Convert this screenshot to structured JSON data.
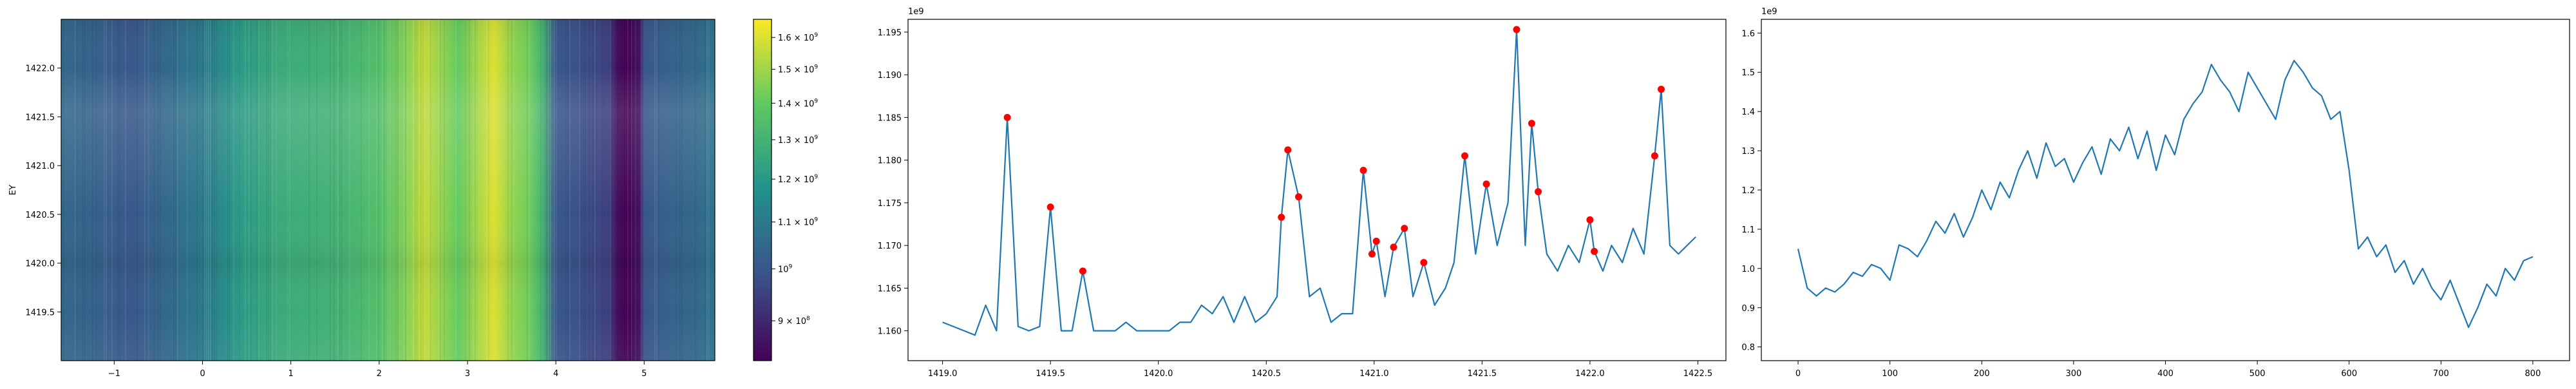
{
  "chart_data": [
    {
      "type": "heatmap",
      "ylabel": "EY",
      "x_ticks": [
        "−1",
        "0",
        "1",
        "2",
        "3",
        "4",
        "5"
      ],
      "x_tick_values": [
        -1,
        0,
        1,
        2,
        3,
        4,
        5
      ],
      "xlim": [
        -1.6,
        5.8
      ],
      "y_ticks": [
        "1419.5",
        "1420.0",
        "1420.5",
        "1421.0",
        "1421.5",
        "1422.0"
      ],
      "y_tick_values": [
        1419.5,
        1420.0,
        1420.5,
        1421.0,
        1421.5,
        1422.0
      ],
      "ylim": [
        1419.0,
        1422.5
      ],
      "colormap": "viridis",
      "colorbar": {
        "scale": "log",
        "range": [
          830000000,
          1660000000
        ],
        "tick_values": [
          900000000,
          1000000000,
          1100000000,
          1200000000,
          1300000000,
          1400000000,
          1500000000,
          1600000000
        ],
        "tick_labels": [
          {
            "base": "9 × 10",
            "exp": "8"
          },
          {
            "base": "10",
            "exp": "9"
          },
          {
            "base": "1.1 × 10",
            "exp": "9"
          },
          {
            "base": "1.2 × 10",
            "exp": "9"
          },
          {
            "base": "1.3 × 10",
            "exp": "9"
          },
          {
            "base": "1.4 × 10",
            "exp": "9"
          },
          {
            "base": "1.5 × 10",
            "exp": "9"
          },
          {
            "base": "1.6 × 10",
            "exp": "9"
          }
        ]
      },
      "column_profile": {
        "x": [
          -1.6,
          -1.2,
          -0.8,
          -0.4,
          0.0,
          0.4,
          0.8,
          1.2,
          1.6,
          2.0,
          2.3,
          2.5,
          2.7,
          2.9,
          3.1,
          3.3,
          3.5,
          3.7,
          3.85,
          4.0,
          4.3,
          4.6,
          4.7,
          4.8,
          4.95,
          5.0,
          5.3,
          5.6,
          5.8
        ],
        "values": [
          1050000000,
          1030000000,
          1000000000,
          1050000000,
          1100000000,
          1200000000,
          1260000000,
          1280000000,
          1300000000,
          1350000000,
          1450000000,
          1560000000,
          1480000000,
          1400000000,
          1500000000,
          1600000000,
          1480000000,
          1420000000,
          1300000000,
          1000000000,
          980000000,
          950000000,
          850000000,
          830000000,
          860000000,
          1000000000,
          1030000000,
          1050000000,
          1080000000
        ]
      },
      "row_profile": {
        "y": [
          1419.0,
          1419.5,
          1420.0,
          1420.5,
          1421.0,
          1421.3,
          1421.55,
          1421.8,
          1422.0,
          1422.5
        ],
        "offset": [
          0.01,
          0.0,
          -0.01,
          0.0,
          0.01,
          0.015,
          0.02,
          0.01,
          0.0,
          -0.01
        ]
      }
    },
    {
      "type": "line",
      "y_offset_label": "1e9",
      "x_ticks": [
        "1419.0",
        "1419.5",
        "1420.0",
        "1420.5",
        "1421.0",
        "1421.5",
        "1422.0",
        "1422.5"
      ],
      "x_tick_values": [
        1419.0,
        1419.5,
        1420.0,
        1420.5,
        1421.0,
        1421.5,
        1422.0,
        1422.5
      ],
      "xlim": [
        1418.84,
        1422.63
      ],
      "y_ticks": [
        "1.160",
        "1.165",
        "1.170",
        "1.175",
        "1.180",
        "1.185",
        "1.190",
        "1.195"
      ],
      "y_tick_values": [
        1.16,
        1.165,
        1.17,
        1.175,
        1.18,
        1.185,
        1.19,
        1.195
      ],
      "ylim": [
        1.1565,
        1.1965
      ],
      "series": [
        {
          "x": [
            1419.0,
            1419.05,
            1419.1,
            1419.15,
            1419.2,
            1419.25,
            1419.3,
            1419.35,
            1419.4,
            1419.45,
            1419.5,
            1419.55,
            1419.6,
            1419.65,
            1419.7,
            1419.75,
            1419.8,
            1419.85,
            1419.9,
            1419.95,
            1420.0,
            1420.05,
            1420.1,
            1420.15,
            1420.2,
            1420.25,
            1420.3,
            1420.35,
            1420.4,
            1420.45,
            1420.5,
            1420.55,
            1420.57,
            1420.6,
            1420.65,
            1420.7,
            1420.75,
            1420.8,
            1420.85,
            1420.9,
            1420.95,
            1420.99,
            1421.01,
            1421.05,
            1421.09,
            1421.14,
            1421.18,
            1421.23,
            1421.28,
            1421.33,
            1421.37,
            1421.42,
            1421.47,
            1421.52,
            1421.57,
            1421.62,
            1421.66,
            1421.7,
            1421.73,
            1421.76,
            1421.8,
            1421.85,
            1421.9,
            1421.95,
            1422.0,
            1422.02,
            1422.06,
            1422.1,
            1422.15,
            1422.2,
            1422.25,
            1422.3,
            1422.33,
            1422.37,
            1422.41,
            1422.45,
            1422.49
          ],
          "values": [
            1.161,
            1.1605,
            1.16,
            1.1595,
            1.163,
            1.16,
            1.185,
            1.1605,
            1.16,
            1.1605,
            1.1745,
            1.16,
            1.16,
            1.167,
            1.16,
            1.16,
            1.16,
            1.161,
            1.16,
            1.16,
            1.16,
            1.16,
            1.161,
            1.161,
            1.163,
            1.162,
            1.164,
            1.161,
            1.164,
            1.161,
            1.162,
            1.164,
            1.1733,
            1.1812,
            1.1757,
            1.164,
            1.165,
            1.161,
            1.162,
            1.162,
            1.1788,
            1.169,
            1.1705,
            1.164,
            1.1698,
            1.172,
            1.164,
            1.168,
            1.163,
            1.165,
            1.168,
            1.1805,
            1.169,
            1.1772,
            1.17,
            1.175,
            1.1953,
            1.17,
            1.1843,
            1.1763,
            1.169,
            1.167,
            1.17,
            1.168,
            1.173,
            1.1693,
            1.167,
            1.17,
            1.168,
            1.172,
            1.169,
            1.1805,
            1.1883,
            1.17,
            1.169,
            1.17,
            1.171
          ]
        }
      ],
      "peaks": {
        "x": [
          1419.3,
          1419.5,
          1419.65,
          1420.57,
          1420.6,
          1420.65,
          1420.95,
          1420.99,
          1421.01,
          1421.09,
          1421.14,
          1421.23,
          1421.42,
          1421.52,
          1421.66,
          1421.73,
          1421.76,
          1422.0,
          1422.02,
          1422.3,
          1422.33
        ],
        "values": [
          1.185,
          1.1745,
          1.167,
          1.1733,
          1.1812,
          1.1757,
          1.1788,
          1.169,
          1.1705,
          1.1698,
          1.172,
          1.168,
          1.1805,
          1.1772,
          1.1953,
          1.1843,
          1.1763,
          1.173,
          1.1693,
          1.1805,
          1.1883
        ]
      },
      "line_color": "#1f77b4",
      "marker_color": "#ff0000"
    },
    {
      "type": "line",
      "y_offset_label": "1e9",
      "x_ticks": [
        "0",
        "100",
        "200",
        "300",
        "400",
        "500",
        "600",
        "700",
        "800"
      ],
      "x_tick_values": [
        0,
        100,
        200,
        300,
        400,
        500,
        600,
        700,
        800
      ],
      "xlim": [
        -40,
        840
      ],
      "y_ticks": [
        "0.8",
        "0.9",
        "1.0",
        "1.1",
        "1.2",
        "1.3",
        "1.4",
        "1.5",
        "1.6"
      ],
      "y_tick_values": [
        0.8,
        0.9,
        1.0,
        1.1,
        1.2,
        1.3,
        1.4,
        1.5,
        1.6
      ],
      "ylim": [
        0.765,
        1.635
      ],
      "series": [
        {
          "x": [
            0,
            10,
            20,
            30,
            40,
            50,
            60,
            70,
            80,
            90,
            100,
            110,
            120,
            130,
            140,
            150,
            160,
            170,
            180,
            190,
            200,
            210,
            220,
            230,
            240,
            250,
            260,
            270,
            280,
            290,
            300,
            310,
            320,
            330,
            340,
            350,
            360,
            370,
            380,
            390,
            400,
            410,
            420,
            430,
            440,
            450,
            460,
            470,
            480,
            490,
            500,
            510,
            520,
            530,
            540,
            550,
            560,
            570,
            580,
            590,
            600,
            610,
            620,
            630,
            640,
            650,
            660,
            670,
            680,
            690,
            700,
            710,
            720,
            730,
            740,
            750,
            760,
            770,
            780,
            790,
            800
          ],
          "values": [
            1.05,
            0.95,
            0.93,
            0.95,
            0.94,
            0.96,
            0.99,
            0.98,
            1.01,
            1.0,
            0.97,
            1.06,
            1.05,
            1.03,
            1.07,
            1.12,
            1.09,
            1.14,
            1.08,
            1.13,
            1.2,
            1.15,
            1.22,
            1.18,
            1.25,
            1.3,
            1.23,
            1.32,
            1.26,
            1.28,
            1.22,
            1.27,
            1.31,
            1.24,
            1.33,
            1.3,
            1.36,
            1.28,
            1.35,
            1.25,
            1.34,
            1.29,
            1.38,
            1.42,
            1.45,
            1.52,
            1.48,
            1.45,
            1.4,
            1.5,
            1.46,
            1.42,
            1.38,
            1.48,
            1.53,
            1.5,
            1.46,
            1.44,
            1.38,
            1.4,
            1.25,
            1.05,
            1.08,
            1.03,
            1.06,
            0.99,
            1.02,
            0.96,
            1.0,
            0.95,
            0.92,
            0.97,
            0.91,
            0.85,
            0.9,
            0.96,
            0.93,
            1.0,
            0.97,
            1.02,
            1.03
          ]
        }
      ],
      "line_color": "#1f77b4"
    }
  ]
}
